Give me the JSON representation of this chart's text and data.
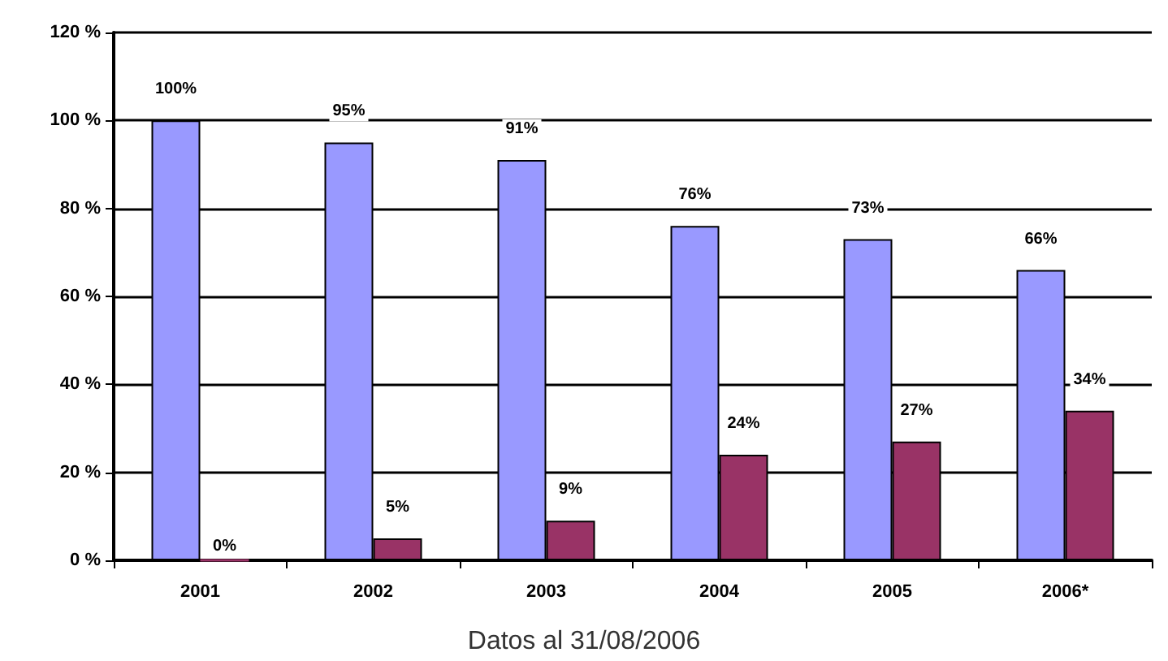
{
  "chart_data": {
    "type": "bar",
    "categories": [
      "2001",
      "2002",
      "2003",
      "2004",
      "2005",
      "2006*"
    ],
    "series": [
      {
        "color": "#9999ff",
        "values": [
          100,
          95,
          91,
          76,
          73,
          66
        ],
        "value_labels": [
          "100%",
          "95%",
          "91%",
          "76%",
          "73%",
          "66%"
        ]
      },
      {
        "color": "#993366",
        "values": [
          0,
          5,
          9,
          24,
          27,
          34
        ],
        "value_labels": [
          "0%",
          "5%",
          "9%",
          "24%",
          "27%",
          "34%"
        ]
      }
    ],
    "ylim": [
      0,
      120
    ],
    "yticks": [
      {
        "value": 0,
        "label": "0 %"
      },
      {
        "value": 20,
        "label": "20 %"
      },
      {
        "value": 40,
        "label": "40 %"
      },
      {
        "value": 60,
        "label": "60 %"
      },
      {
        "value": 80,
        "label": "80 %"
      },
      {
        "value": 100,
        "label": "100 %"
      },
      {
        "value": 120,
        "label": "120 %"
      }
    ],
    "grid": "y",
    "annotations": [
      "Datos al 31/08/2006"
    ]
  }
}
